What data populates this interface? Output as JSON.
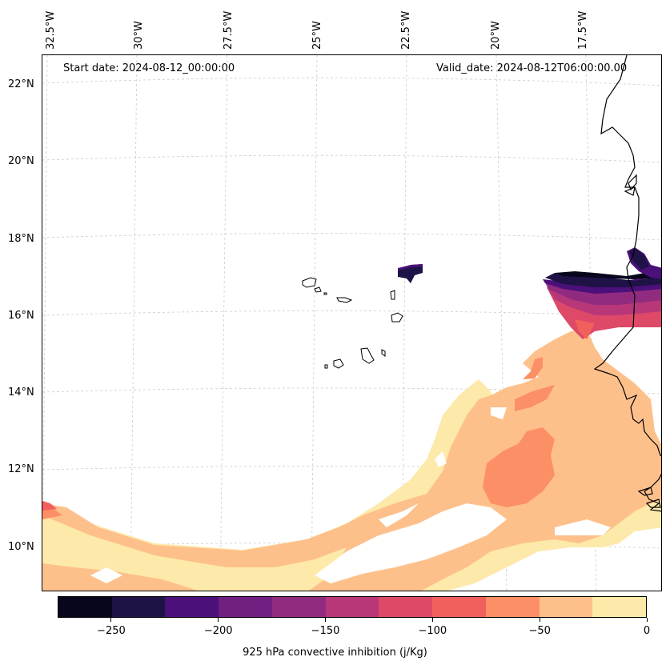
{
  "map": {
    "start_date": "Start date: 2024-08-12_00:00:00",
    "valid_date": "Valid_date: 2024-08-12T06:00:00.00",
    "lon_labels": [
      "32.5°W",
      "30°W",
      "27.5°W",
      "25°W",
      "22.5°W",
      "20°W",
      "17.5°W"
    ],
    "lat_labels": [
      "22°N",
      "20°N",
      "18°N",
      "16°N",
      "14°N",
      "12°N",
      "10°N"
    ],
    "coastline_color": "#000000",
    "gridline_color": "#cccccc"
  },
  "colorbar": {
    "title": "925 hPa convective inhibition (j/Kg)",
    "tick_labels": [
      "−250",
      "−200",
      "−150",
      "−100",
      "−50",
      "0"
    ],
    "levels": [
      -275,
      -250,
      -225,
      -200,
      -175,
      -150,
      -125,
      -100,
      -75,
      -50,
      -25,
      0
    ],
    "colors": [
      "#07061c",
      "#1f1247",
      "#4b1079",
      "#711f81",
      "#912b80",
      "#b73779",
      "#de4968",
      "#f1605d",
      "#fc8f65",
      "#fec08b",
      "#fde9a9"
    ]
  }
}
